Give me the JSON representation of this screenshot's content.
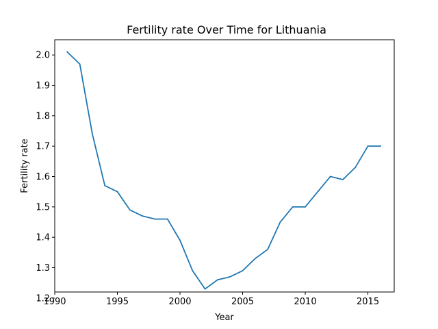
{
  "chart_data": {
    "type": "line",
    "title": "Fertility rate Over Time for Lithuania",
    "xlabel": "Year",
    "ylabel": "Fertility rate",
    "xlim": [
      1990.0,
      2017.1
    ],
    "ylim": [
      1.22,
      2.05
    ],
    "xticks": [
      1990,
      1995,
      2000,
      2005,
      2010,
      2015
    ],
    "xtick_labels": [
      "1990",
      "1995",
      "2000",
      "2005",
      "2010",
      "2015"
    ],
    "yticks": [
      1.2,
      1.3,
      1.4,
      1.5,
      1.6,
      1.7,
      1.8,
      1.9,
      2.0
    ],
    "ytick_labels": [
      "1.2",
      "1.3",
      "1.4",
      "1.5",
      "1.6",
      "1.7",
      "1.8",
      "1.9",
      "2.0"
    ],
    "grid": false,
    "line_color": "#1f77b4",
    "series": [
      {
        "x": [
          1991,
          1992,
          1993,
          1994,
          1995,
          1996,
          1997,
          1998,
          1999,
          2000,
          2001,
          2002,
          2003,
          2004,
          2005,
          2006,
          2007,
          2008,
          2009,
          2010,
          2011,
          2012,
          2013,
          2014,
          2015,
          2016
        ],
        "values": [
          2.01,
          1.97,
          1.74,
          1.57,
          1.55,
          1.49,
          1.47,
          1.46,
          1.46,
          1.39,
          1.29,
          1.23,
          1.26,
          1.27,
          1.29,
          1.33,
          1.36,
          1.45,
          1.5,
          1.5,
          1.55,
          1.6,
          1.59,
          1.63,
          1.7,
          1.7
        ]
      }
    ]
  }
}
